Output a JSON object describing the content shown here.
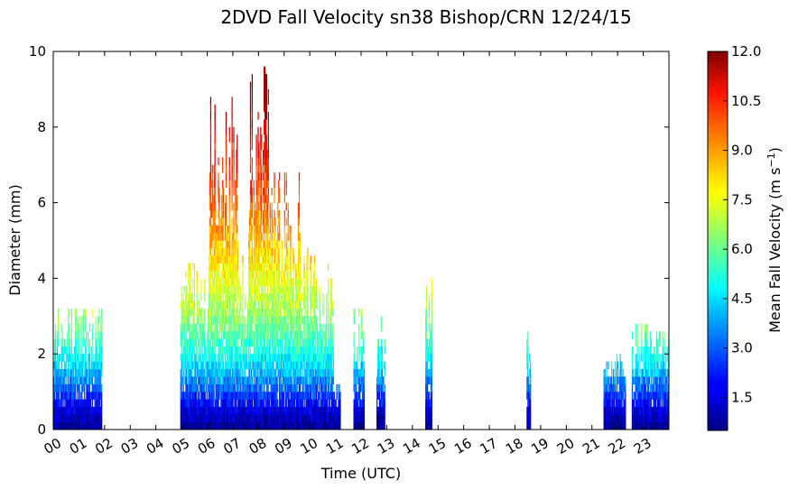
{
  "chart_data": {
    "type": "heatmap",
    "title": "2DVD Fall Velocity sn38 Bishop/CRN 12/24/15",
    "xlabel": "Time (UTC)",
    "ylabel": "Diameter (mm)",
    "colorbar_label": "Mean Fall Velocity (m s$^{-1}$)",
    "colorbar_label_parts": {
      "main": "Mean Fall Velocity (m s",
      "sup": "−1",
      "end": ")"
    },
    "xlim": [
      0,
      24
    ],
    "ylim": [
      0,
      10
    ],
    "clim": [
      0.5,
      12.0
    ],
    "colormap": "jet",
    "x_tick_labels": [
      "00",
      "01",
      "02",
      "03",
      "04",
      "05",
      "06",
      "07",
      "08",
      "09",
      "10",
      "11",
      "12",
      "13",
      "14",
      "15",
      "16",
      "17",
      "18",
      "19",
      "20",
      "21",
      "22",
      "23"
    ],
    "y_tick_labels": [
      "0",
      "2",
      "4",
      "6",
      "8",
      "10"
    ],
    "colorbar_tick_labels": [
      "1.5",
      "3.0",
      "4.5",
      "6.0",
      "7.5",
      "9.0",
      "10.5",
      "12.0"
    ],
    "colorbar_tick_values": [
      1.5,
      3.0,
      4.5,
      6.0,
      7.5,
      9.0,
      10.5,
      12.0
    ],
    "rain_periods": [
      {
        "start": 0.0,
        "end": 1.9,
        "max_diameter": 3.3
      },
      {
        "start": 4.95,
        "end": 6.05,
        "max_diameter": 4.6
      },
      {
        "start": 6.05,
        "end": 7.2,
        "max_diameter": 8.8
      },
      {
        "start": 7.2,
        "end": 7.6,
        "max_diameter": 5.0
      },
      {
        "start": 7.6,
        "end": 8.5,
        "max_diameter": 9.7
      },
      {
        "start": 8.5,
        "end": 9.6,
        "max_diameter": 6.8
      },
      {
        "start": 9.6,
        "end": 10.2,
        "max_diameter": 5.2
      },
      {
        "start": 10.2,
        "end": 10.9,
        "max_diameter": 4.3
      },
      {
        "start": 10.9,
        "end": 11.2,
        "max_diameter": 1.2
      },
      {
        "start": 11.7,
        "end": 12.1,
        "max_diameter": 3.1
      },
      {
        "start": 12.6,
        "end": 12.9,
        "max_diameter": 3.0
      },
      {
        "start": 14.5,
        "end": 14.75,
        "max_diameter": 4.4
      },
      {
        "start": 18.45,
        "end": 18.6,
        "max_diameter": 2.8
      },
      {
        "start": 21.45,
        "end": 22.3,
        "max_diameter": 2.1
      },
      {
        "start": 22.55,
        "end": 23.4,
        "max_diameter": 2.8
      },
      {
        "start": 23.4,
        "end": 23.97,
        "max_diameter": 2.5
      }
    ],
    "fall_velocity_vs_diameter": [
      {
        "diameter": 0.1,
        "velocity": 0.8
      },
      {
        "diameter": 0.5,
        "velocity": 1.5
      },
      {
        "diameter": 1.0,
        "velocity": 2.8
      },
      {
        "diameter": 1.5,
        "velocity": 4.0
      },
      {
        "diameter": 2.0,
        "velocity": 5.0
      },
      {
        "diameter": 3.0,
        "velocity": 6.5
      },
      {
        "diameter": 4.0,
        "velocity": 7.5
      },
      {
        "diameter": 6.0,
        "velocity": 9.5
      },
      {
        "diameter": 8.0,
        "velocity": 11.0
      },
      {
        "diameter": 9.5,
        "velocity": 12.0
      }
    ]
  }
}
